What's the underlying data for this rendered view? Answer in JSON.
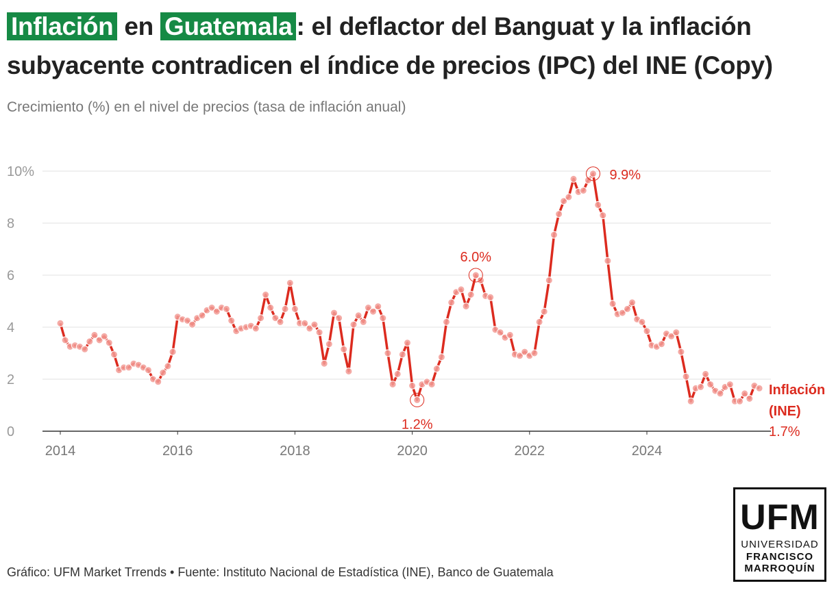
{
  "title": {
    "highlight1": "Inflación",
    "word_en": "en",
    "highlight2": "Guatemala",
    "rest": ": el deflactor del Banguat y la inflación subyacente contradicen el índice de precios (IPC) del INE (Copy)"
  },
  "subtitle": "Crecimiento (%) en el nivel de precios (tasa de inflación anual)",
  "footer": "Gráfico: UFM Market Trrends • Fuente: Instituto Nacional de Estadística (INE), Banco de Guatemala",
  "logo": {
    "big": "UFM",
    "line1": "UNIVERSIDAD",
    "line2": "FRANCISCO",
    "line3": "MARROQUÍN"
  },
  "colors": {
    "series": "#dc2b1f",
    "highlight": "#168a45",
    "grid": "#e2e2e2",
    "tick": "#999999"
  },
  "chart_data": {
    "type": "line",
    "ylim": [
      0,
      10
    ],
    "yticks": [
      0,
      2,
      4,
      6,
      8,
      10
    ],
    "ytick_labels": [
      "0",
      "2",
      "4",
      "6",
      "8",
      "10%"
    ],
    "xticks": [
      2014,
      2016,
      2018,
      2020,
      2022,
      2024
    ],
    "x_start": 2014.0,
    "x_step": 0.0833333,
    "series": [
      {
        "name": "Inflación (INE)",
        "label_line1": "Inflación",
        "label_line2": "(INE)",
        "end_label": "1.7%",
        "values": [
          4.15,
          3.5,
          3.25,
          3.3,
          3.25,
          3.15,
          3.45,
          3.7,
          3.5,
          3.65,
          3.4,
          2.95,
          2.35,
          2.45,
          2.45,
          2.6,
          2.55,
          2.45,
          2.35,
          2.0,
          1.9,
          2.25,
          2.5,
          3.05,
          4.4,
          4.3,
          4.25,
          4.1,
          4.35,
          4.45,
          4.65,
          4.75,
          4.6,
          4.75,
          4.7,
          4.25,
          3.85,
          3.95,
          4.0,
          4.05,
          3.95,
          4.35,
          5.25,
          4.75,
          4.35,
          4.2,
          4.7,
          5.7,
          4.7,
          4.15,
          4.15,
          3.95,
          4.1,
          3.8,
          2.6,
          3.35,
          4.55,
          4.35,
          3.15,
          2.3,
          4.1,
          4.45,
          4.2,
          4.75,
          4.6,
          4.8,
          4.35,
          3.0,
          1.8,
          2.2,
          2.95,
          3.4,
          1.75,
          1.2,
          1.8,
          1.9,
          1.8,
          2.4,
          2.85,
          4.2,
          4.95,
          5.35,
          5.45,
          4.8,
          5.25,
          6.0,
          5.8,
          5.2,
          5.15,
          3.9,
          3.8,
          3.6,
          3.7,
          2.95,
          2.9,
          3.05,
          2.9,
          3.0,
          4.2,
          4.6,
          5.8,
          7.55,
          8.35,
          8.85,
          9.0,
          9.7,
          9.2,
          9.25,
          9.65,
          9.9,
          8.7,
          8.3,
          6.55,
          4.9,
          4.5,
          4.55,
          4.7,
          4.95,
          4.3,
          4.2,
          3.85,
          3.3,
          3.25,
          3.35,
          3.75,
          3.65,
          3.8,
          3.05,
          2.1,
          1.15,
          1.65,
          1.7,
          2.2,
          1.8,
          1.55,
          1.45,
          1.7,
          1.8,
          1.15,
          1.15,
          1.45,
          1.25,
          1.75,
          1.65
        ]
      }
    ],
    "annotations": [
      {
        "label": "1.2%",
        "index": 73
      },
      {
        "label": "6.0%",
        "index": 85
      },
      {
        "label": "9.9%",
        "index": 109
      }
    ]
  }
}
